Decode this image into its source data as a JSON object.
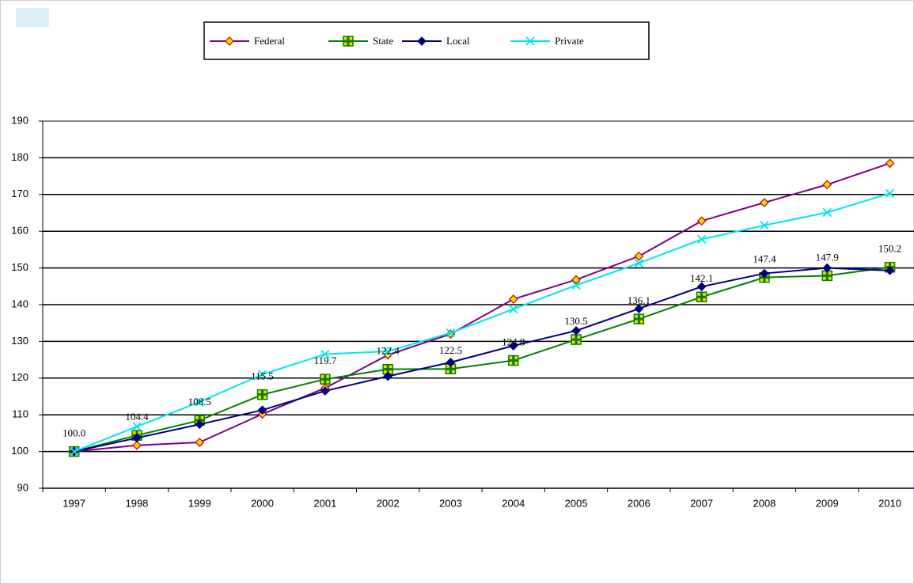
{
  "chart_data": {
    "type": "line",
    "categories": [
      "1997",
      "1998",
      "1999",
      "2000",
      "2001",
      "2002",
      "2003",
      "2004",
      "2005",
      "2006",
      "2007",
      "2008",
      "2009",
      "2010"
    ],
    "series": [
      {
        "name": "Federal",
        "color": "#800080",
        "marker": "diamond",
        "values": [
          100,
          101.7,
          102.5,
          110.2,
          117.3,
          126.3,
          132.0,
          141.5,
          146.8,
          153.2,
          162.8,
          167.8,
          172.7,
          178.5
        ]
      },
      {
        "name": "State",
        "color": "#008000",
        "marker": "square",
        "values": [
          100.0,
          104.4,
          108.5,
          115.5,
          119.7,
          122.4,
          122.5,
          124.8,
          130.5,
          136.1,
          142.1,
          147.4,
          147.9,
          150.2
        ],
        "value_labels": [
          "100.0",
          "104.4",
          "108.5",
          "115.5",
          "119.7",
          "122.4",
          "122.5",
          "124.8",
          "130.5",
          "136.1",
          "142.1",
          "147.4",
          "147.9",
          "150.2"
        ]
      },
      {
        "name": "Local",
        "color": "#000080",
        "marker": "diamond",
        "values": [
          100,
          103.7,
          107.4,
          111.3,
          116.5,
          120.5,
          124.3,
          128.8,
          132.9,
          138.9,
          144.9,
          148.5,
          150.0,
          149.3
        ]
      },
      {
        "name": "Private",
        "color": "#00e5ee",
        "marker": "x",
        "values": [
          100,
          106.8,
          113.5,
          121.0,
          126.5,
          127.3,
          132.3,
          138.8,
          145.3,
          151.3,
          157.8,
          161.6,
          165.1,
          170.3
        ]
      }
    ],
    "ylim": [
      90,
      190
    ],
    "yticks": [
      90,
      100,
      110,
      120,
      130,
      140,
      150,
      160,
      170,
      180,
      190
    ],
    "grid": true,
    "legend": "top"
  }
}
